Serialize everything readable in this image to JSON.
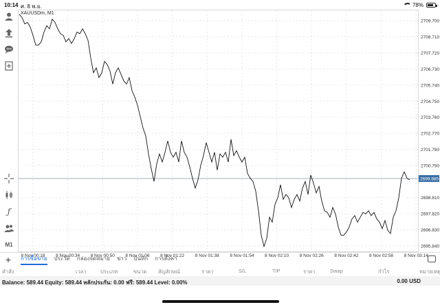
{
  "status_bar": {
    "time": "10:14",
    "date": "ศ. 8 พ.ย.",
    "battery": "78%"
  },
  "left_toolbar": {
    "icons": [
      "user-icon",
      "upload-icon",
      "chat-icon",
      "document-plus-icon",
      "crosshair-icon",
      "candlestick-icon",
      "function-icon",
      "people-icon"
    ],
    "timeframe": "M1"
  },
  "chart_data": {
    "type": "line",
    "symbol_label": "XAUUSDm, M1",
    "x_ticks": [
      "8 Nov 00:18",
      "8 Nov 00:34",
      "8 Nov 00:50",
      "8 Nov 01:06",
      "8 Nov 01:22",
      "8 Nov 01:38",
      "8 Nov 01:54",
      "8 Nov 02:10",
      "8 Nov 02:26",
      "8 Nov 02:42",
      "8 Nov 02:58",
      "8 Nov 03:14"
    ],
    "y_ticks": [
      "2709.700",
      "2708.710",
      "2707.720",
      "2706.730",
      "2705.740",
      "2704.750",
      "2703.760",
      "2702.770",
      "2701.780",
      "2700.790",
      "2698.810",
      "2697.820",
      "2696.830",
      "2695.840"
    ],
    "ylim": [
      2695.5,
      2710.3
    ],
    "current_price": "2699.985",
    "current_value": 2699.985,
    "grid": true,
    "series": [
      {
        "values": [
          2710.1,
          2709.9,
          2709.5,
          2709.6,
          2709.3,
          2708.8,
          2708.2,
          2708.2,
          2708.4,
          2709.0,
          2709.4,
          2709.2,
          2709.8,
          2709.6,
          2709.2,
          2708.9,
          2708.8,
          2708.4,
          2708.6,
          2708.3,
          2708.6,
          2709.0,
          2708.9,
          2709.2,
          2708.9,
          2708.5,
          2707.4,
          2706.5,
          2706.8,
          2706.2,
          2706.5,
          2707.2,
          2707.0,
          2706.6,
          2705.8,
          2706.5,
          2706.8,
          2706.4,
          2706.0,
          2705.8,
          2706.2,
          2705.4,
          2705.0,
          2704.5,
          2703.8,
          2703.1,
          2702.6,
          2701.5,
          2700.6,
          2699.8,
          2700.9,
          2701.5,
          2701.0,
          2701.6,
          2702.3,
          2701.6,
          2701.3,
          2701.6,
          2701.0,
          2702.3,
          2701.6,
          2701.3,
          2700.7,
          2700.0,
          2699.4,
          2699.9,
          2700.8,
          2701.4,
          2702.2,
          2701.6,
          2701.0,
          2701.6,
          2700.5,
          2701.5,
          2701.3,
          2701.6,
          2701.0,
          2702.4,
          2701.4,
          2701.7,
          2701.3,
          2701.0,
          2701.3,
          2700.3,
          2700.0,
          2699.8,
          2699.2,
          2698.0,
          2696.5,
          2695.8,
          2696.3,
          2697.6,
          2697.3,
          2698.4,
          2698.8,
          2699.6,
          2698.7,
          2699.0,
          2698.8,
          2698.2,
          2698.7,
          2699.0,
          2698.6,
          2699.4,
          2699.8,
          2699.0,
          2700.2,
          2699.7,
          2699.1,
          2699.5,
          2698.6,
          2698.0,
          2697.9,
          2697.6,
          2698.2,
          2697.8,
          2697.0,
          2696.5,
          2696.5,
          2696.7,
          2697.0,
          2697.5,
          2697.7,
          2697.3,
          2697.6,
          2697.9,
          2697.8,
          2698.0,
          2697.7,
          2697.9,
          2697.5,
          2697.3,
          2696.9,
          2697.4,
          2696.8,
          2696.6,
          2697.6,
          2698.0,
          2698.8,
          2700.0,
          2700.4,
          2700.0,
          2699.9
        ]
      }
    ]
  },
  "bottom_tabs": {
    "items": [
      "การซื้อขาย",
      "ประวัติ",
      "กล่องจดหมาย",
      "ข่าว",
      "บันทึก",
      "การตั้งค่า"
    ],
    "active_index": 0
  },
  "columns": [
    "คำสั่ง",
    "เวลา",
    "ประเภท",
    "ขนาด",
    "สัญลักษณ์",
    "ราคา",
    "S/L",
    "T/P",
    "ราคา",
    "Swap",
    "กำไร",
    "หมายเหตุ"
  ],
  "balance": {
    "text": "Balance: 589.44 Equity: 589.44 หลักประกัน: 0.00 ฟรี: 589.44 Level: 0.00%",
    "amount": "0.00  USD"
  }
}
